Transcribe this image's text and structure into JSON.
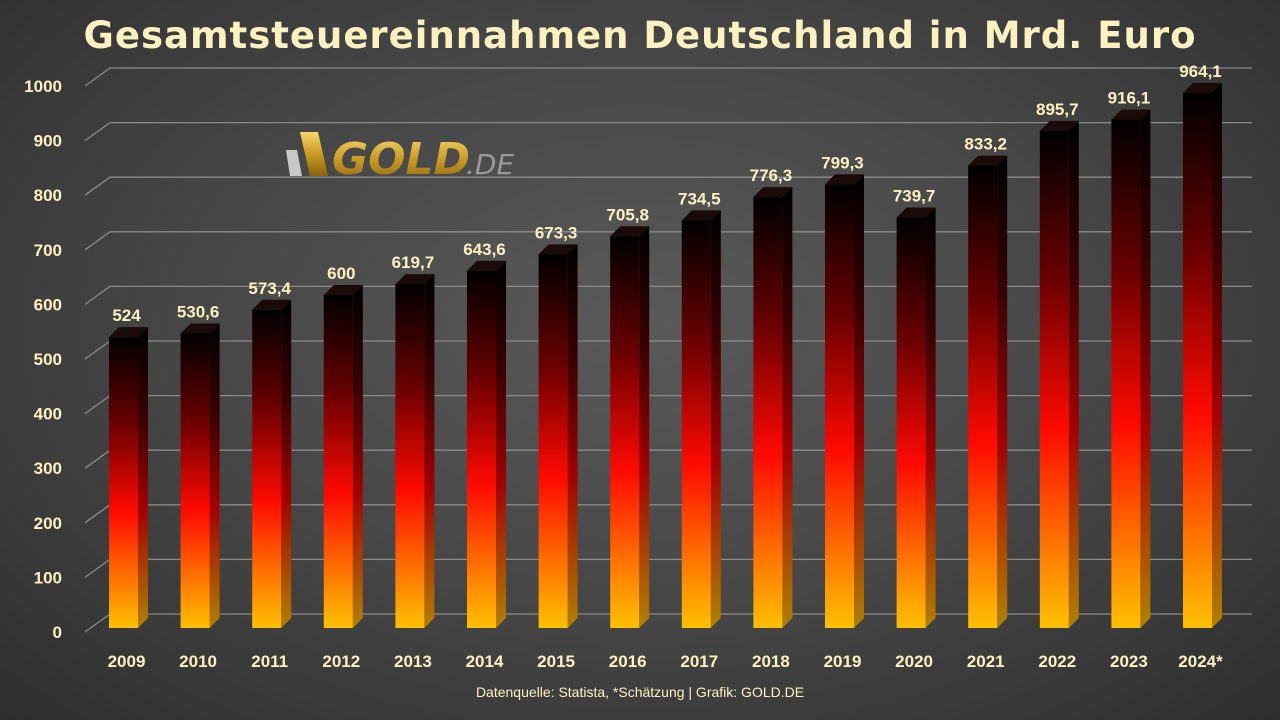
{
  "chart_data": {
    "type": "bar",
    "title": "Gesamtsteuereinnahmen Deutschland in Mrd. Euro",
    "categories": [
      "2009",
      "2010",
      "2011",
      "2012",
      "2013",
      "2014",
      "2015",
      "2016",
      "2017",
      "2018",
      "2019",
      "2020",
      "2021",
      "2022",
      "2023",
      "2024*"
    ],
    "values": [
      524,
      530.6,
      573.4,
      600,
      619.7,
      643.6,
      673.3,
      705.8,
      734.5,
      776.3,
      799.3,
      739.7,
      833.2,
      895.7,
      916.1,
      964.1
    ],
    "data_labels": [
      "524",
      "530,6",
      "573,4",
      "600",
      "619,7",
      "643,6",
      "673,3",
      "705,8",
      "734,5",
      "776,3",
      "799,3",
      "739,7",
      "833,2",
      "895,7",
      "916,1",
      "964,1"
    ],
    "yticks": [
      0,
      100,
      200,
      300,
      400,
      500,
      600,
      700,
      800,
      900,
      1000
    ],
    "ylim": [
      0,
      1000
    ],
    "grid": true,
    "style": "3d-bar, vertical gradient yellow-red-black",
    "colors": {
      "bottom": "#ffc000",
      "middle": "#ff0000",
      "top": "#000000",
      "text": "#fdf1c0"
    }
  },
  "logo": {
    "text": "GOLD.DE"
  },
  "source": "Datenquelle: Statista, *Schätzung | Grafik: GOLD.DE"
}
